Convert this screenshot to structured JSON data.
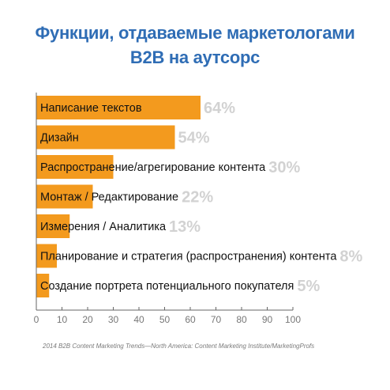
{
  "chart_data": {
    "type": "bar",
    "orientation": "horizontal",
    "title_lines": [
      "Функции, отдаваемые маркетологами",
      "B2B на аутсорс"
    ],
    "categories": [
      "Написание текстов",
      "Дизайн",
      "Распространение/агрегирование контента",
      "Монтаж / Редактирование",
      "Измерения / Аналитика",
      "Планирование и стратегия (распространения) контента",
      "Создание портрета потенциального покупателя"
    ],
    "values": [
      64,
      54,
      30,
      22,
      13,
      8,
      5
    ],
    "value_labels": [
      "64%",
      "54%",
      "30%",
      "22%",
      "13%",
      "8%",
      "5%"
    ],
    "xlim": [
      0,
      100
    ],
    "x_ticks": [
      "0",
      "10",
      "20",
      "30",
      "40",
      "50",
      "60",
      "70",
      "80",
      "90",
      "100"
    ],
    "grid": false,
    "bar_color": "#f39a1e",
    "value_label_color": "#d2d2d2",
    "title_color": "#2f6db5"
  },
  "source": "2014 B2B Content Marketing Trends—North America: Content Marketing Institute/MarketingProfs"
}
